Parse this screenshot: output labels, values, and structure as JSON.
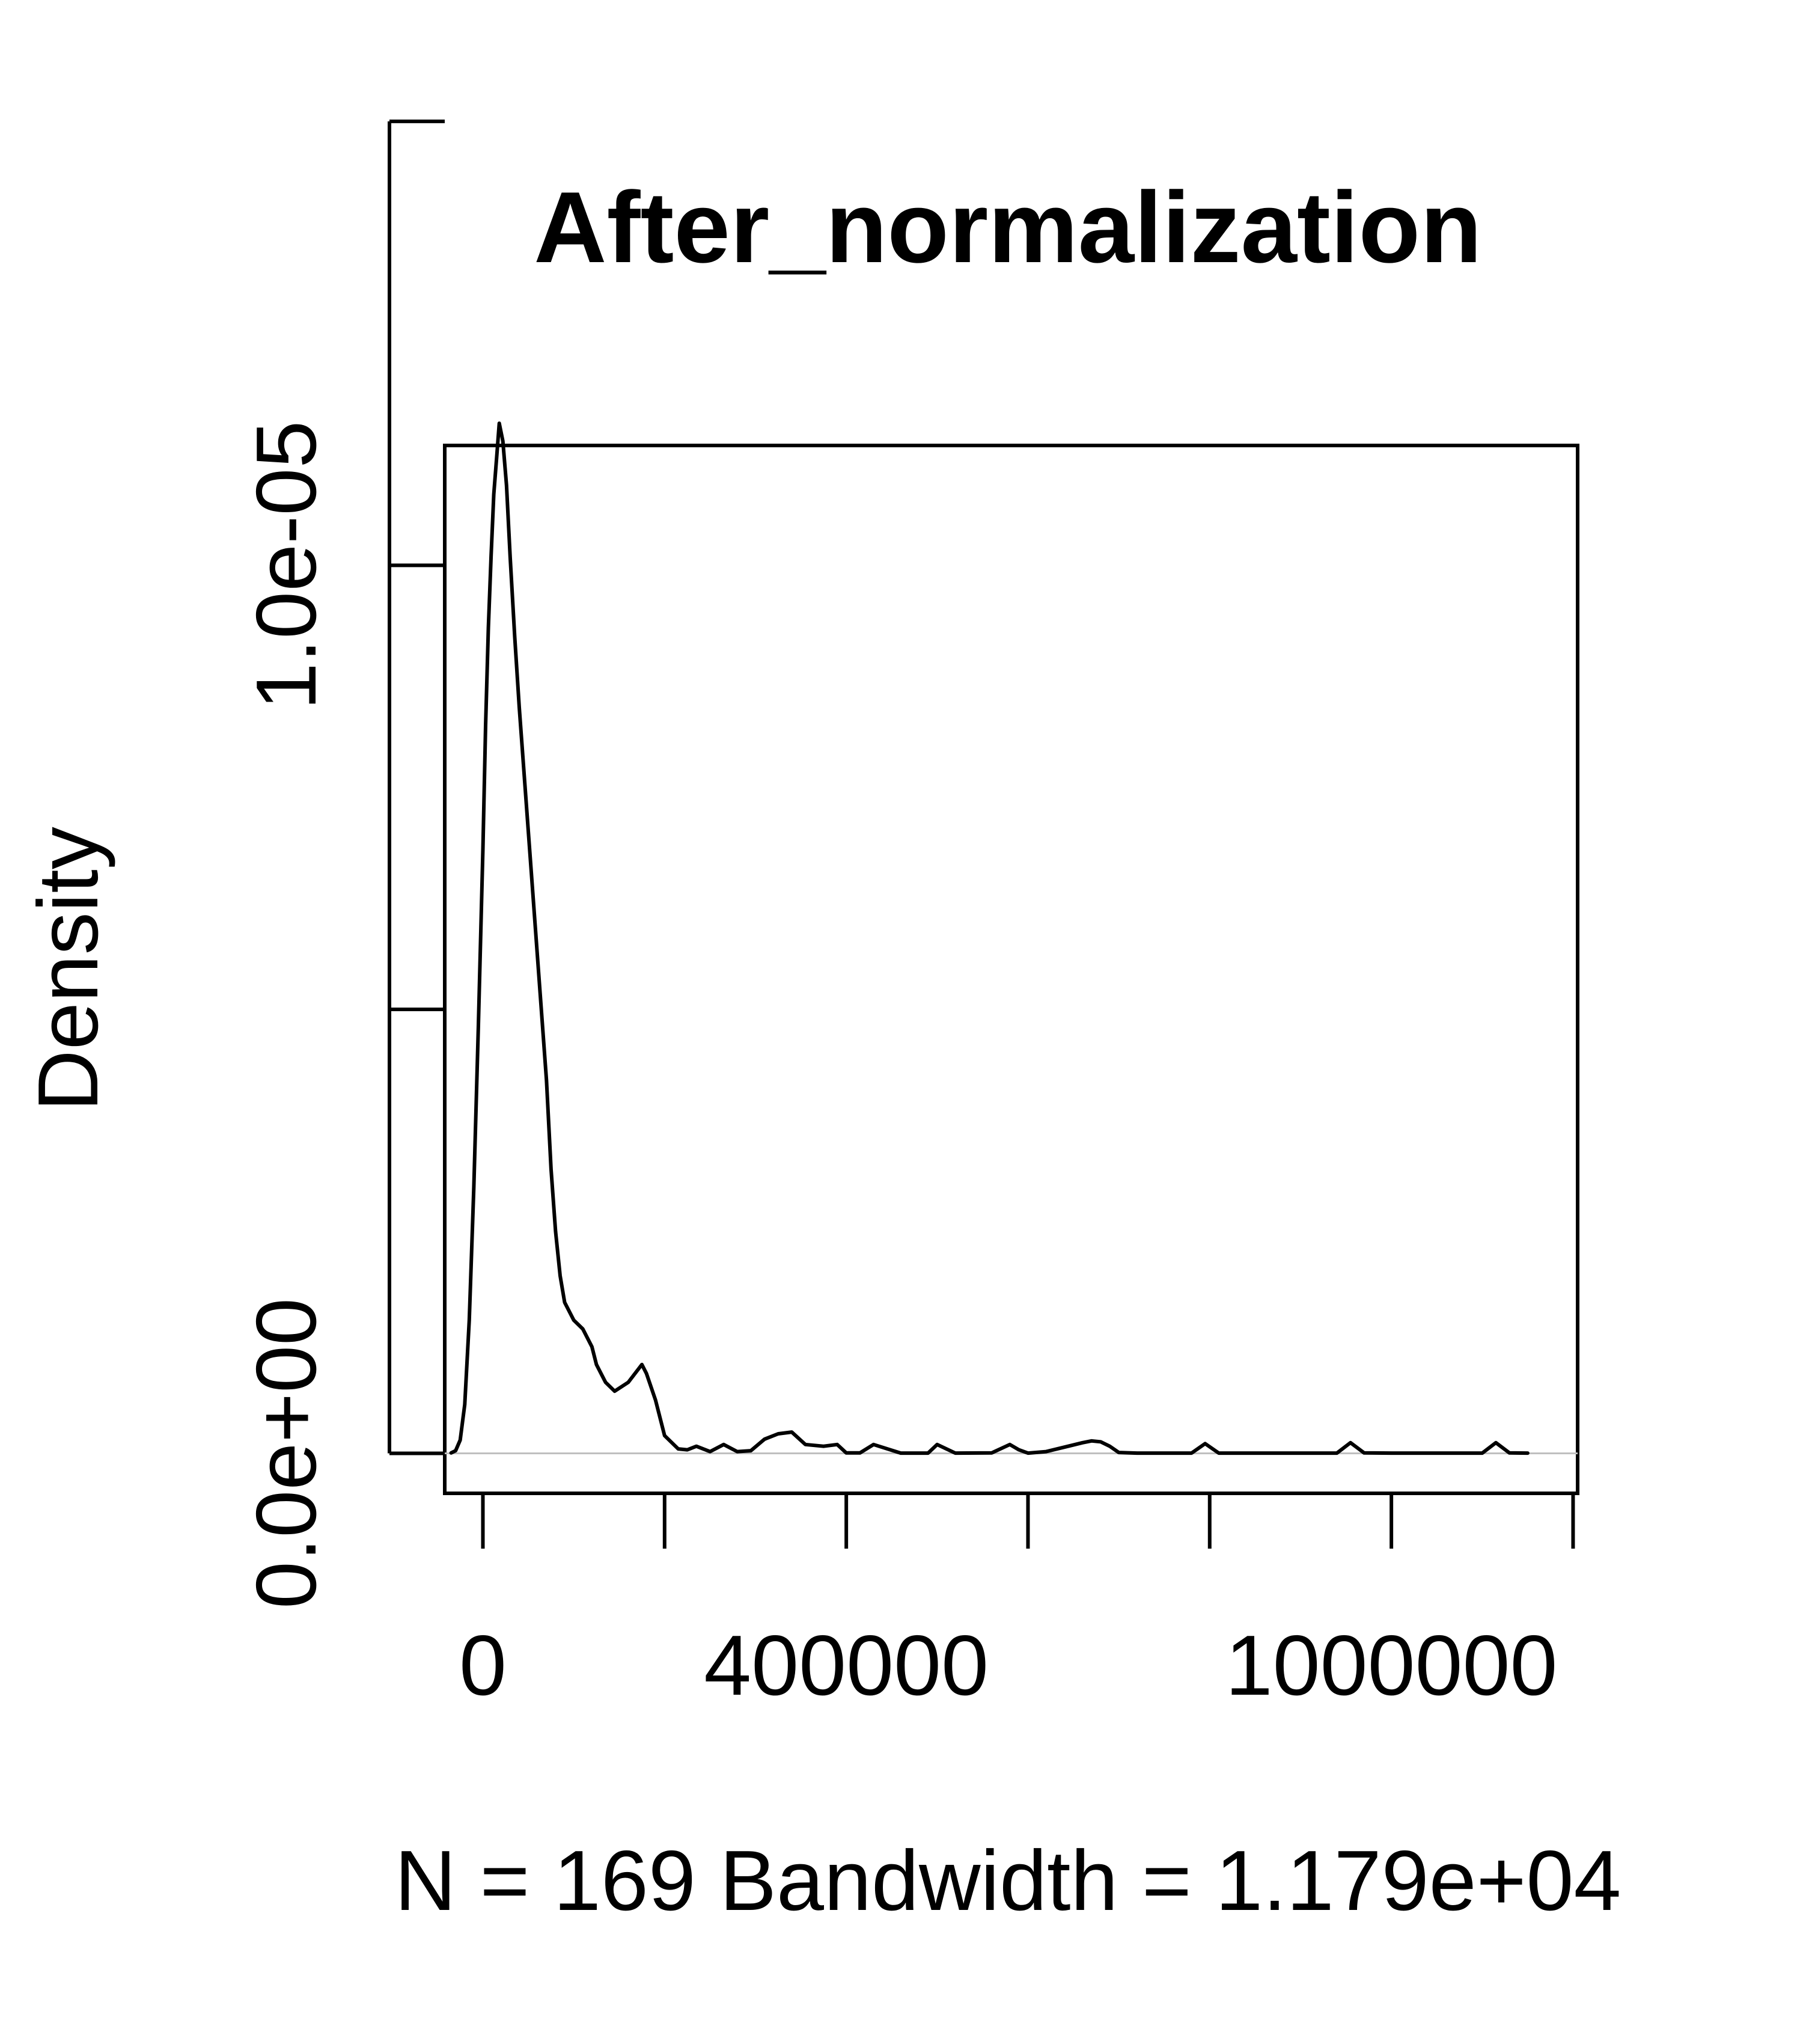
{
  "chart_data": {
    "type": "line",
    "title": "After_normalization",
    "xlabel": "N = 169   Bandwidth = 1.179e+04",
    "ylabel": "Density",
    "xlim": [
      -42000,
      1205000
    ],
    "ylim": [
      -4.5e-07,
      1.135e-05
    ],
    "grid": false,
    "legend": "none",
    "x_ticks": [
      0,
      200000,
      400000,
      600000,
      800000,
      1000000,
      1200000
    ],
    "x_tick_labels": [
      "0",
      "",
      "400000",
      "",
      "",
      "1000000",
      ""
    ],
    "y_ticks": [
      0,
      5e-06,
      1e-05,
      1.5e-05
    ],
    "y_tick_labels": [
      "0.0e+00",
      "",
      "1.0e-05",
      ""
    ],
    "baseline": {
      "y": 0,
      "color": "#bfbfbf"
    },
    "series": [
      {
        "color": "#000000",
        "x": [
          -35000,
          -30000,
          -25000,
          -20000,
          -15000,
          -10000,
          -5000,
          0,
          3000,
          6000,
          9000,
          12000,
          15000,
          18000,
          22000,
          26000,
          30000,
          35000,
          40000,
          50000,
          60000,
          70000,
          75000,
          80000,
          85000,
          90000,
          100000,
          110000,
          120000,
          125000,
          135000,
          145000,
          160000,
          175000,
          180000,
          190000,
          200000,
          215000,
          225000,
          235000,
          250000,
          265000,
          280000,
          295000,
          310000,
          325000,
          340000,
          355000,
          375000,
          390000,
          400000,
          415000,
          430000,
          460000,
          490000,
          500000,
          520000,
          560000,
          580000,
          590000,
          600000,
          620000,
          660000,
          670000,
          680000,
          690000,
          700000,
          720000,
          780000,
          795000,
          810000,
          860000,
          940000,
          955000,
          970000,
          1000000,
          1100000,
          1115000,
          1130000,
          1150000
        ],
        "y": [
          5e-09,
          3e-08,
          1.5e-07,
          5.5e-07,
          1.5e-06,
          3e-06,
          4.8e-06,
          6.8e-06,
          8.2e-06,
          9.3e-06,
          1.01e-05,
          1.08e-05,
          1.12e-05,
          1.16e-05,
          1.14e-05,
          1.09e-05,
          1.01e-05,
          9.2e-06,
          8.4e-06,
          7e-06,
          5.6e-06,
          4.2e-06,
          3.2e-06,
          2.5e-06,
          2e-06,
          1.7e-06,
          1.5e-06,
          1.4e-06,
          1.2e-06,
          1e-06,
          8e-07,
          7e-07,
          8e-07,
          1e-06,
          9e-07,
          6e-07,
          2e-07,
          5e-08,
          4e-08,
          8e-08,
          2e-08,
          1e-07,
          2e-08,
          3e-08,
          1.6e-07,
          2.2e-07,
          2.4e-07,
          1e-07,
          8e-08,
          1e-07,
          5e-09,
          5e-09,
          1e-07,
          3e-09,
          3e-09,
          1e-07,
          3e-09,
          5e-09,
          1e-07,
          4e-08,
          3e-09,
          2e-08,
          1.2e-07,
          1.4e-07,
          1.3e-07,
          8e-08,
          1e-08,
          3e-09,
          3e-09,
          1.1e-07,
          3e-09,
          3e-09,
          3e-09,
          1.2e-07,
          5e-09,
          3e-09,
          3e-09,
          1.2e-07,
          5e-09,
          3e-09
        ]
      }
    ]
  }
}
